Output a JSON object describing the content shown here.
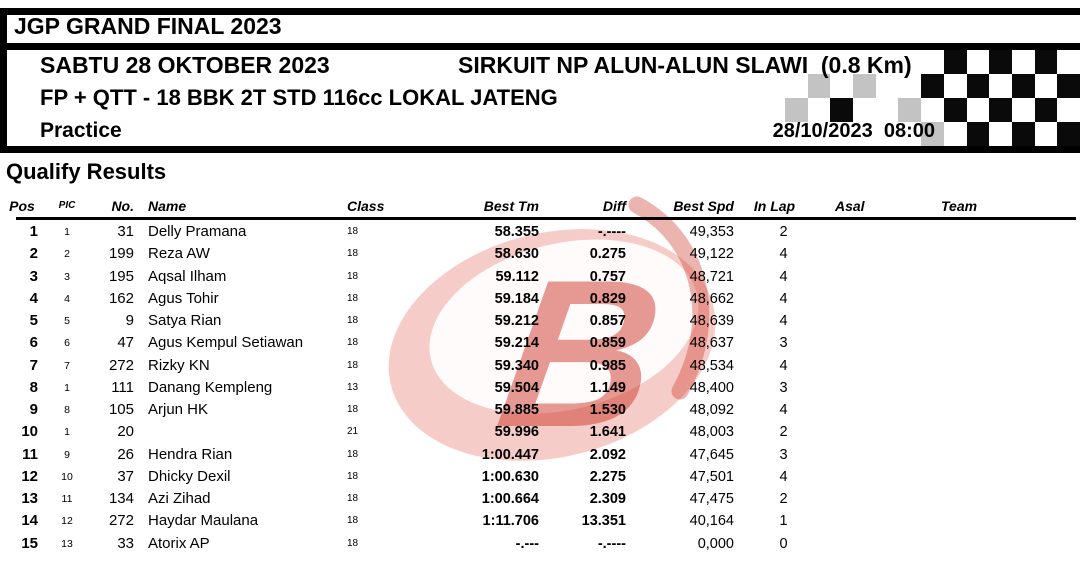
{
  "header": {
    "event_title": "JGP GRAND FINAL 2023",
    "date_line": "SABTU 28 OKTOBER 2023",
    "circuit_line": "SIRKUIT NP ALUN-ALUN SLAWI  (0.8 Km)",
    "class_line": "FP + QTT - 18 BBK 2T STD 116cc LOKAL JATENG",
    "session_label": "Practice",
    "session_datetime": "28/10/2023  08:00"
  },
  "section_title": "Qualify Results",
  "table": {
    "columns": [
      "Pos",
      "PIC",
      "No.",
      "Name",
      "Class",
      "Best Tm",
      "Diff",
      "Best Spd",
      "In Lap",
      "Asal",
      "Team"
    ],
    "rows": [
      {
        "pos": "1",
        "pic": "1",
        "no": "31",
        "name": "Delly Pramana",
        "class": "18",
        "best_tm": "58.355",
        "diff": "-.----",
        "best_spd": "49,353",
        "in_lap": "2",
        "asal": "",
        "team": ""
      },
      {
        "pos": "2",
        "pic": "2",
        "no": "199",
        "name": "Reza AW",
        "class": "18",
        "best_tm": "58.630",
        "diff": "0.275",
        "best_spd": "49,122",
        "in_lap": "4",
        "asal": "",
        "team": ""
      },
      {
        "pos": "3",
        "pic": "3",
        "no": "195",
        "name": "Aqsal Ilham",
        "class": "18",
        "best_tm": "59.112",
        "diff": "0.757",
        "best_spd": "48,721",
        "in_lap": "4",
        "asal": "",
        "team": ""
      },
      {
        "pos": "4",
        "pic": "4",
        "no": "162",
        "name": "Agus Tohir",
        "class": "18",
        "best_tm": "59.184",
        "diff": "0.829",
        "best_spd": "48,662",
        "in_lap": "4",
        "asal": "",
        "team": ""
      },
      {
        "pos": "5",
        "pic": "5",
        "no": "9",
        "name": "Satya Rian",
        "class": "18",
        "best_tm": "59.212",
        "diff": "0.857",
        "best_spd": "48,639",
        "in_lap": "4",
        "asal": "",
        "team": ""
      },
      {
        "pos": "6",
        "pic": "6",
        "no": "47",
        "name": "Agus Kempul Setiawan",
        "class": "18",
        "best_tm": "59.214",
        "diff": "0.859",
        "best_spd": "48,637",
        "in_lap": "3",
        "asal": "",
        "team": ""
      },
      {
        "pos": "7",
        "pic": "7",
        "no": "272",
        "name": "Rizky KN",
        "class": "18",
        "best_tm": "59.340",
        "diff": "0.985",
        "best_spd": "48,534",
        "in_lap": "4",
        "asal": "",
        "team": ""
      },
      {
        "pos": "8",
        "pic": "1",
        "no": "111",
        "name": "Danang Kempleng",
        "class": "13",
        "best_tm": "59.504",
        "diff": "1.149",
        "best_spd": "48,400",
        "in_lap": "3",
        "asal": "",
        "team": ""
      },
      {
        "pos": "9",
        "pic": "8",
        "no": "105",
        "name": "Arjun HK",
        "class": "18",
        "best_tm": "59.885",
        "diff": "1.530",
        "best_spd": "48,092",
        "in_lap": "4",
        "asal": "",
        "team": ""
      },
      {
        "pos": "10",
        "pic": "1",
        "no": "20",
        "name": "",
        "class": "21",
        "best_tm": "59.996",
        "diff": "1.641",
        "best_spd": "48,003",
        "in_lap": "2",
        "asal": "",
        "team": ""
      },
      {
        "pos": "11",
        "pic": "9",
        "no": "26",
        "name": "Hendra Rian",
        "class": "18",
        "best_tm": "1:00.447",
        "diff": "2.092",
        "best_spd": "47,645",
        "in_lap": "3",
        "asal": "",
        "team": ""
      },
      {
        "pos": "12",
        "pic": "10",
        "no": "37",
        "name": "Dhicky Dexil",
        "class": "18",
        "best_tm": "1:00.630",
        "diff": "2.275",
        "best_spd": "47,501",
        "in_lap": "4",
        "asal": "",
        "team": ""
      },
      {
        "pos": "13",
        "pic": "11",
        "no": "134",
        "name": "Azi Zihad",
        "class": "18",
        "best_tm": "1:00.664",
        "diff": "2.309",
        "best_spd": "47,475",
        "in_lap": "2",
        "asal": "",
        "team": ""
      },
      {
        "pos": "14",
        "pic": "12",
        "no": "272",
        "name": "Haydar Maulana",
        "class": "18",
        "best_tm": "1:11.706",
        "diff": "13.351",
        "best_spd": "40,164",
        "in_lap": "1",
        "asal": "",
        "team": ""
      },
      {
        "pos": "15",
        "pic": "13",
        "no": "33",
        "name": "Atorix AP",
        "class": "18",
        "best_tm": "-.---",
        "diff": "-.----",
        "best_spd": "0,000",
        "in_lap": "0",
        "asal": "",
        "team": ""
      }
    ]
  },
  "checkered_flag": {
    "pattern": [
      "wwwwwwwbwbwbw",
      "wgwgwwbwbwbwb",
      "gwbwwgwbwbwbw",
      "wwwwwwgwbwbwb"
    ],
    "colors": {
      "b": "#0a0a0a",
      "g": "#c3c3c3",
      "w": "#ffffff"
    }
  },
  "watermark": {
    "letter": "B",
    "red": "#cd3a2b",
    "light_red": "#e2564a"
  }
}
